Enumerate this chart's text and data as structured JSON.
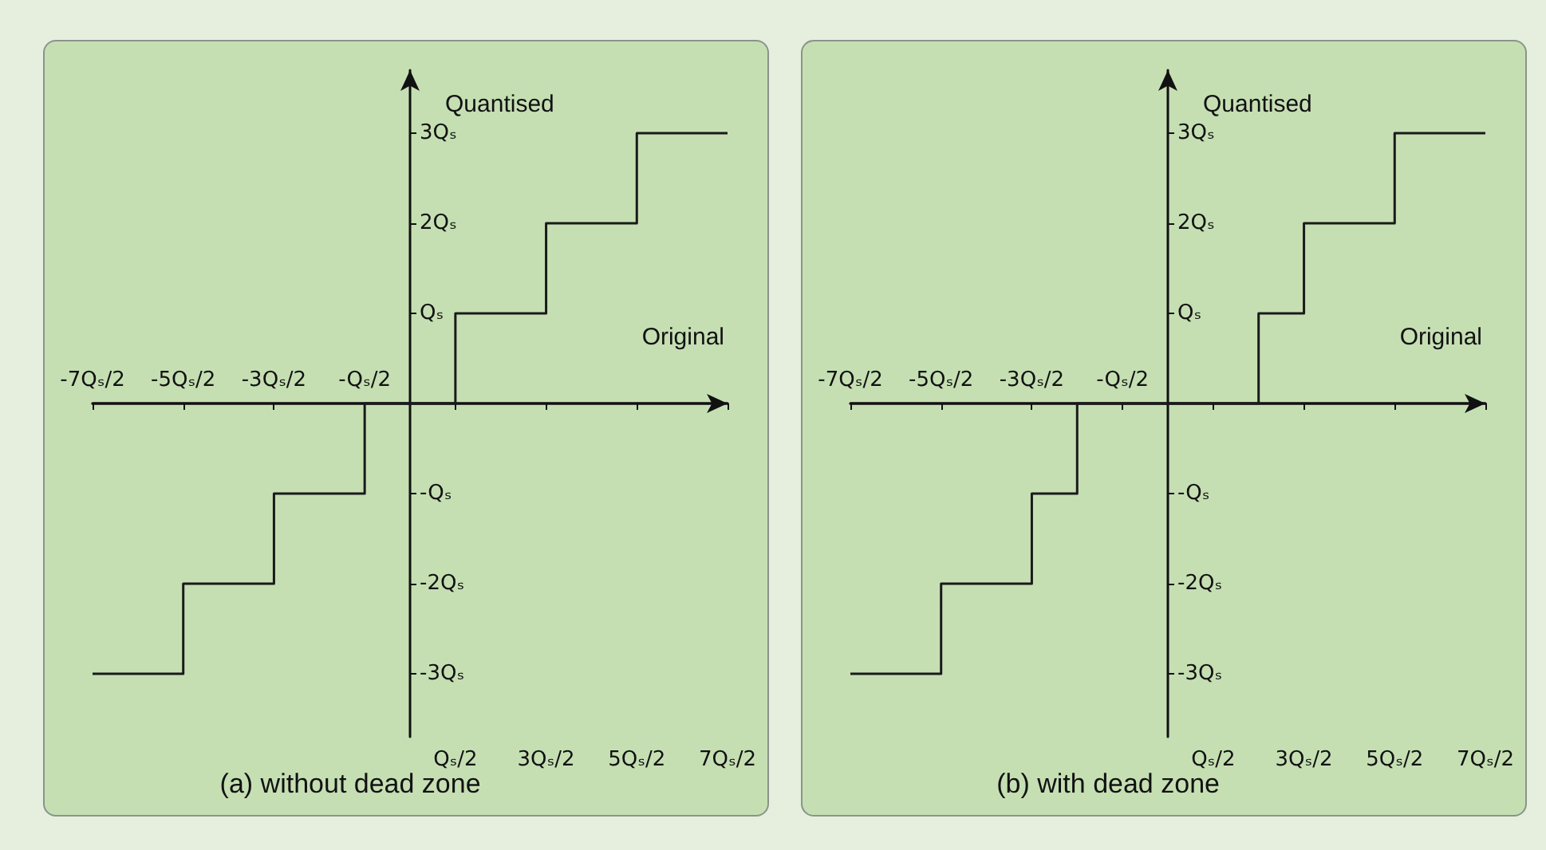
{
  "chart_data": [
    {
      "type": "step",
      "title": "(a) without dead zone",
      "xlabel": "Original",
      "ylabel": "Quantised",
      "color": "#1a1a1a",
      "categories": [
        "-7Qₛ/2",
        null,
        "-5Qₛ/2",
        null,
        "-3Qₛ/2",
        null,
        "-Qₛ/2",
        null,
        "Qₛ/2",
        null,
        "3Qₛ/2",
        null,
        "5Qₛ/2",
        null,
        "7Qₛ/2"
      ],
      "values": [
        -3,
        -3,
        -2,
        -2,
        -1,
        -1,
        0,
        0,
        1,
        1,
        2,
        2,
        3,
        3,
        3
      ],
      "ylim": [
        -3.7,
        3.7
      ],
      "yticks": [
        {
          "value": -3,
          "label": "-3Qₛ"
        },
        {
          "value": -2,
          "label": "-2Qₛ"
        },
        {
          "value": -1,
          "label": "-Qₛ"
        },
        {
          "value": 1,
          "label": "Qₛ"
        },
        {
          "value": 2,
          "label": "2Qₛ"
        },
        {
          "value": 3,
          "label": "3Qₛ"
        }
      ]
    },
    {
      "type": "step",
      "title": "(b) with dead zone",
      "xlabel": "Original",
      "ylabel": "Quantised",
      "color": "#1a1a1a",
      "categories": [
        "-7Qₛ/2",
        null,
        "-5Qₛ/2",
        null,
        "-3Qₛ/2",
        null,
        "-Qₛ/2",
        null,
        "Qₛ/2",
        null,
        "3Qₛ/2",
        null,
        "5Qₛ/2",
        null,
        "7Qₛ/2"
      ],
      "values": [
        -3,
        -3,
        -2,
        -2,
        -1,
        0,
        0,
        0,
        0,
        1,
        2,
        2,
        3,
        3,
        3
      ],
      "ylim": [
        -3.7,
        3.7
      ],
      "yticks": [
        {
          "value": -3,
          "label": "-3Qₛ"
        },
        {
          "value": -2,
          "label": "-2Qₛ"
        },
        {
          "value": -1,
          "label": "-Qₛ"
        },
        {
          "value": 1,
          "label": "Qₛ"
        },
        {
          "value": 2,
          "label": "2Qₛ"
        },
        {
          "value": 3,
          "label": "3Qₛ"
        }
      ]
    }
  ]
}
